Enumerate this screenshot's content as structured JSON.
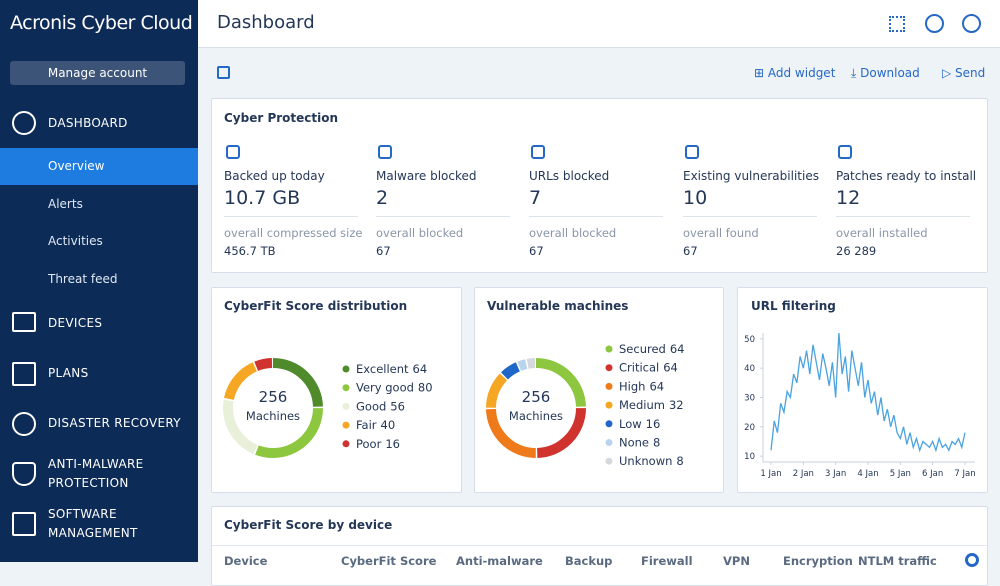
{
  "sidebar": {
    "brand": "Acronis Cyber Cloud",
    "manage": "Manage account",
    "nav": [
      {
        "label": "DASHBOARD",
        "children": [
          "Overview",
          "Alerts",
          "Activities",
          "Threat feed"
        ]
      },
      {
        "label": "DEVICES"
      },
      {
        "label": "PLANS"
      },
      {
        "label": "DISASTER RECOVERY"
      },
      {
        "label": "ANTI-MALWARE PROTECTION"
      },
      {
        "label": "SOFTWARE MANAGEMENT"
      }
    ]
  },
  "header": {
    "title": "Dashboard"
  },
  "toolbar": [
    "Add widget",
    "Download",
    "Send"
  ],
  "cyber_protection": {
    "title": "Cyber Protection",
    "stats": [
      {
        "label": "Backed up today",
        "value": "10.7 GB",
        "sub_label": "overall compressed size",
        "sub_value": "456.7 TB"
      },
      {
        "label": "Malware blocked",
        "value": 2,
        "sub_label": "overall blocked",
        "sub_value": 67
      },
      {
        "label": "URLs blocked",
        "value": 7,
        "sub_label": "overall blocked",
        "sub_value": 67
      },
      {
        "label": "Existing vulnerabilities",
        "value": 10,
        "sub_label": "overall found",
        "sub_value": 67
      },
      {
        "label": "Patches ready to install",
        "value": 12,
        "sub_label": "overall installed",
        "sub_value": "26 289"
      }
    ]
  },
  "cyberfit": {
    "type": "donut",
    "title": "CyberFit Score distribution",
    "total": 256,
    "total_label": "Machines",
    "series": [
      {
        "name": "Excellent",
        "value": 64,
        "color": "#4f8a2b"
      },
      {
        "name": "Very good",
        "value": 80,
        "color": "#8dc63f"
      },
      {
        "name": "Good",
        "value": 56,
        "color": "#e9f0d9"
      },
      {
        "name": "Fair",
        "value": 40,
        "color": "#f5a623"
      },
      {
        "name": "Poor",
        "value": 16,
        "color": "#d0322d"
      }
    ]
  },
  "vulnerable": {
    "type": "donut",
    "title": "Vulnerable machines",
    "total": 256,
    "total_label": "Machines",
    "series": [
      {
        "name": "Secured",
        "value": 64,
        "color": "#8dc63f"
      },
      {
        "name": "Critical",
        "value": 64,
        "color": "#d0322d"
      },
      {
        "name": "High",
        "value": 64,
        "color": "#ef7a1a"
      },
      {
        "name": "Medium",
        "value": 32,
        "color": "#f5a623"
      },
      {
        "name": "Low",
        "value": 16,
        "color": "#1f66c8"
      },
      {
        "name": "None",
        "value": 8,
        "color": "#b9d4ef"
      },
      {
        "name": "Unknown",
        "value": 8,
        "color": "#d5d9de"
      }
    ]
  },
  "url_filtering": {
    "type": "line",
    "title": "URL filtering",
    "color": "#4aa3df",
    "xlim": [
      0,
      60
    ],
    "ylim": [
      8,
      52
    ],
    "yticks": [
      10,
      20,
      30,
      40,
      50
    ],
    "xticks": [
      {
        "value": 0,
        "label": "1 Jan"
      },
      {
        "value": 10,
        "label": "2 Jan"
      },
      {
        "value": 20,
        "label": "3 Jan"
      },
      {
        "value": 30,
        "label": "4 Jan"
      },
      {
        "value": 40,
        "label": "5 Jan"
      },
      {
        "value": 50,
        "label": "6 Jan"
      },
      {
        "value": 60,
        "label": "7 Jan"
      }
    ],
    "values": [
      12,
      22,
      18,
      28,
      25,
      32,
      30,
      38,
      35,
      44,
      40,
      46,
      38,
      48,
      42,
      36,
      45,
      40,
      34,
      42,
      30,
      52,
      38,
      44,
      32,
      46,
      40,
      34,
      42,
      30,
      36,
      28,
      32,
      24,
      30,
      22,
      26,
      20,
      24,
      18,
      16,
      20,
      14,
      18,
      13,
      16,
      12,
      15,
      14,
      13,
      15,
      12,
      16,
      13,
      14,
      12,
      15,
      14,
      16,
      13,
      18
    ]
  },
  "device_table": {
    "title": "CyberFit Score by device",
    "columns": [
      "Device",
      "CyberFit Score",
      "Anti-malware",
      "Backup",
      "Firewall",
      "VPN",
      "Encryption",
      "NTLM traffic"
    ]
  }
}
